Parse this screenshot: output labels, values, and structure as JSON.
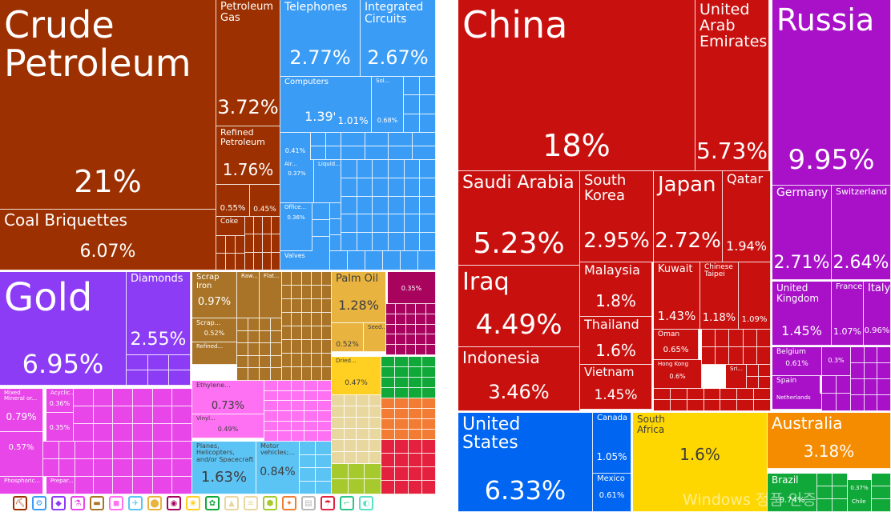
{
  "chart_data": [
    {
      "type": "treemap",
      "panel": "products",
      "tiles": [
        {
          "label": "Crude\nPetroleum",
          "value": "21%",
          "color": "#9c3000",
          "group": "mineral"
        },
        {
          "label": "Coal Briquettes",
          "value": "6.07%",
          "color": "#9c3000",
          "group": "mineral"
        },
        {
          "label": "Petroleum\nGas",
          "value": "3.72%",
          "color": "#9c3000",
          "group": "mineral"
        },
        {
          "label": "Refined\nPetroleum",
          "value": "1.76%",
          "color": "#9c3000",
          "group": "mineral"
        },
        {
          "label": "",
          "value": "0.55%",
          "color": "#9c3000",
          "group": "mineral"
        },
        {
          "label": "",
          "value": "0.45%",
          "color": "#9c3000",
          "group": "mineral"
        },
        {
          "label": "Coke",
          "value": "",
          "color": "#9c3000",
          "group": "mineral"
        },
        {
          "label": "Telephones",
          "value": "2.77%",
          "color": "#3b9cf5",
          "group": "machines"
        },
        {
          "label": "Integrated\nCircuits",
          "value": "2.67%",
          "color": "#3b9cf5",
          "group": "machines"
        },
        {
          "label": "Computers",
          "value": "1.39%",
          "color": "#3b9cf5",
          "group": "machines"
        },
        {
          "label": "",
          "value": "1.01%",
          "color": "#3b9cf5",
          "group": "machines"
        },
        {
          "label": "Sol...",
          "value": "0.68%",
          "color": "#3b9cf5",
          "group": "machines"
        },
        {
          "label": "",
          "value": "0.41%",
          "color": "#3b9cf5",
          "group": "machines"
        },
        {
          "label": "Air...",
          "value": "0.37%",
          "color": "#3b9cf5",
          "group": "machines"
        },
        {
          "label": "Liquid...",
          "value": "",
          "color": "#3b9cf5",
          "group": "machines"
        },
        {
          "label": "Office...",
          "value": "0.36%",
          "color": "#3b9cf5",
          "group": "machines"
        },
        {
          "label": "Valves",
          "value": "",
          "color": "#3b9cf5",
          "group": "machines"
        },
        {
          "label": "Gold",
          "value": "6.95%",
          "color": "#8c3cf5",
          "group": "precious"
        },
        {
          "label": "Diamonds",
          "value": "2.55%",
          "color": "#8c3cf5",
          "group": "precious"
        },
        {
          "label": "Scrap Iron",
          "value": "0.97%",
          "color": "#a97427",
          "group": "metals"
        },
        {
          "label": "Raw...",
          "value": "",
          "color": "#a97427",
          "group": "metals"
        },
        {
          "label": "Flat...",
          "value": "",
          "color": "#a97427",
          "group": "metals"
        },
        {
          "label": "Scrap...",
          "value": "0.52%",
          "color": "#a97427",
          "group": "metals"
        },
        {
          "label": "Refined...",
          "value": "",
          "color": "#a97427",
          "group": "metals"
        },
        {
          "label": "Palm Oil",
          "value": "1.28%",
          "color": "#e8b33f",
          "group": "fats"
        },
        {
          "label": "Seed...",
          "value": "",
          "color": "#e8b33f",
          "group": "fats"
        },
        {
          "label": "",
          "value": "0.52%",
          "color": "#e8b33f",
          "group": "fats"
        },
        {
          "label": "",
          "value": "0.35%",
          "color": "#a8045e",
          "group": "textiles"
        },
        {
          "label": "Dried...",
          "value": "0.47%",
          "color": "#ffcf21",
          "group": "vegetables"
        },
        {
          "label": "Mixed\nMineral or...",
          "value": "0.79%",
          "color": "#e846e8",
          "group": "chemicals"
        },
        {
          "label": "Acyclic...",
          "value": "0.36%",
          "color": "#e846e8",
          "group": "chemicals"
        },
        {
          "label": "",
          "value": "0.35%",
          "color": "#e846e8",
          "group": "chemicals"
        },
        {
          "label": "",
          "value": "0.57%",
          "color": "#e846e8",
          "group": "chemicals"
        },
        {
          "label": "Phosphoric...",
          "value": "",
          "color": "#e846e8",
          "group": "chemicals"
        },
        {
          "label": "Prepar...",
          "value": "",
          "color": "#e846e8",
          "group": "chemicals"
        },
        {
          "label": "Ethylene...",
          "value": "0.73%",
          "color": "#ff71f3",
          "group": "plastics"
        },
        {
          "label": "Vinyl...",
          "value": "0.49%",
          "color": "#ff71f3",
          "group": "plastics"
        },
        {
          "label": "Planes, Helicopters,\nand/or Spacecraft",
          "value": "1.63%",
          "color": "#5cc4f5",
          "group": "transport"
        },
        {
          "label": "Motor\nvehicles;...",
          "value": "0.84%",
          "color": "#5cc4f5",
          "group": "transport"
        }
      ]
    },
    {
      "type": "treemap",
      "panel": "destinations",
      "tiles": [
        {
          "label": "China",
          "value": "18%",
          "color": "#c8110f",
          "group": "asia"
        },
        {
          "label": "United\nArab\nEmirates",
          "value": "5.73%",
          "color": "#c8110f",
          "group": "asia"
        },
        {
          "label": "Saudi Arabia",
          "value": "5.23%",
          "color": "#c8110f",
          "group": "asia"
        },
        {
          "label": "South\nKorea",
          "value": "2.95%",
          "color": "#c8110f",
          "group": "asia"
        },
        {
          "label": "Japan",
          "value": "2.72%",
          "color": "#c8110f",
          "group": "asia"
        },
        {
          "label": "Qatar",
          "value": "1.94%",
          "color": "#c8110f",
          "group": "asia"
        },
        {
          "label": "Iraq",
          "value": "4.49%",
          "color": "#c8110f",
          "group": "asia"
        },
        {
          "label": "Indonesia",
          "value": "3.46%",
          "color": "#c8110f",
          "group": "asia"
        },
        {
          "label": "Malaysia",
          "value": "1.8%",
          "color": "#c8110f",
          "group": "asia"
        },
        {
          "label": "Thailand",
          "value": "1.6%",
          "color": "#c8110f",
          "group": "asia"
        },
        {
          "label": "Vietnam",
          "value": "1.45%",
          "color": "#c8110f",
          "group": "asia"
        },
        {
          "label": "Kuwait",
          "value": "1.43%",
          "color": "#c8110f",
          "group": "asia"
        },
        {
          "label": "Chinese\nTaipei",
          "value": "1.18%",
          "color": "#c8110f",
          "group": "asia"
        },
        {
          "label": "",
          "value": "1.09%",
          "color": "#c8110f",
          "group": "asia"
        },
        {
          "label": "Oman",
          "value": "0.65%",
          "color": "#c8110f",
          "group": "asia"
        },
        {
          "label": "Hong Kong",
          "value": "0.6%",
          "color": "#c8110f",
          "group": "asia"
        },
        {
          "label": "Sri...",
          "value": "",
          "color": "#c8110f",
          "group": "asia"
        },
        {
          "label": "Russia",
          "value": "9.95%",
          "color": "#a811c8",
          "group": "europe"
        },
        {
          "label": "Germany",
          "value": "2.71%",
          "color": "#a811c8",
          "group": "europe"
        },
        {
          "label": "Switzerland",
          "value": "2.64%",
          "color": "#a811c8",
          "group": "europe"
        },
        {
          "label": "United\nKingdom",
          "value": "1.45%",
          "color": "#a811c8",
          "group": "europe"
        },
        {
          "label": "France",
          "value": "1.07%",
          "color": "#a811c8",
          "group": "europe"
        },
        {
          "label": "Italy",
          "value": "0.96%",
          "color": "#a811c8",
          "group": "europe"
        },
        {
          "label": "Belgium",
          "value": "0.61%",
          "color": "#a811c8",
          "group": "europe"
        },
        {
          "label": "",
          "value": "0.3%",
          "color": "#a811c8",
          "group": "europe"
        },
        {
          "label": "Spain",
          "value": "",
          "color": "#a811c8",
          "group": "europe"
        },
        {
          "label": "Netherlands",
          "value": "",
          "color": "#a811c8",
          "group": "europe"
        },
        {
          "label": "United\nStates",
          "value": "6.33%",
          "color": "#0066f2",
          "group": "north-america"
        },
        {
          "label": "Canada",
          "value": "1.05%",
          "color": "#0066f2",
          "group": "north-america"
        },
        {
          "label": "Mexico",
          "value": "0.61%",
          "color": "#0066f2",
          "group": "north-america"
        },
        {
          "label": "South\nAfrica",
          "value": "1.6%",
          "color": "#ffd700",
          "group": "africa"
        },
        {
          "label": "Australia",
          "value": "3.18%",
          "color": "#f58c00",
          "group": "oceania"
        },
        {
          "label": "Brazil",
          "value": "0.74%",
          "color": "#10a838",
          "group": "south-america"
        },
        {
          "label": "",
          "value": "0.37%",
          "color": "#10a838",
          "group": "south-america"
        },
        {
          "label": "Chile",
          "value": "",
          "color": "#10a838",
          "group": "south-america"
        }
      ]
    }
  ],
  "category_icons": [
    {
      "name": "mineral-products-icon",
      "color": "#9c3000"
    },
    {
      "name": "machines-icon",
      "color": "#3b9cf5"
    },
    {
      "name": "precious-metals-icon",
      "color": "#8c3cf5"
    },
    {
      "name": "chemical-products-icon",
      "color": "#e846e8"
    },
    {
      "name": "metals-icon",
      "color": "#a97427"
    },
    {
      "name": "plastics-icon",
      "color": "#ff71f3"
    },
    {
      "name": "transportation-icon",
      "color": "#5cc4f5"
    },
    {
      "name": "animal-fats-icon",
      "color": "#e8b33f"
    },
    {
      "name": "instruments-icon",
      "color": "#a8045e"
    },
    {
      "name": "vegetable-products-icon",
      "color": "#ffcf21"
    },
    {
      "name": "textiles-icon",
      "color": "#10a838"
    },
    {
      "name": "stone-glass-icon",
      "color": "#e8d8a0"
    },
    {
      "name": "wood-products-icon",
      "color": "#e8d8a0"
    },
    {
      "name": "foodstuffs-icon",
      "color": "#a6c92e"
    },
    {
      "name": "animal-products-icon",
      "color": "#f27c33"
    },
    {
      "name": "paper-goods-icon",
      "color": "#b8b8b8"
    },
    {
      "name": "miscellaneous-icon",
      "color": "#e4223f"
    },
    {
      "name": "footwear-icon",
      "color": "#2bc48a"
    },
    {
      "name": "animal-hides-icon",
      "color": "#5ce0c8"
    }
  ],
  "watermark": "Windows 정품 인증"
}
